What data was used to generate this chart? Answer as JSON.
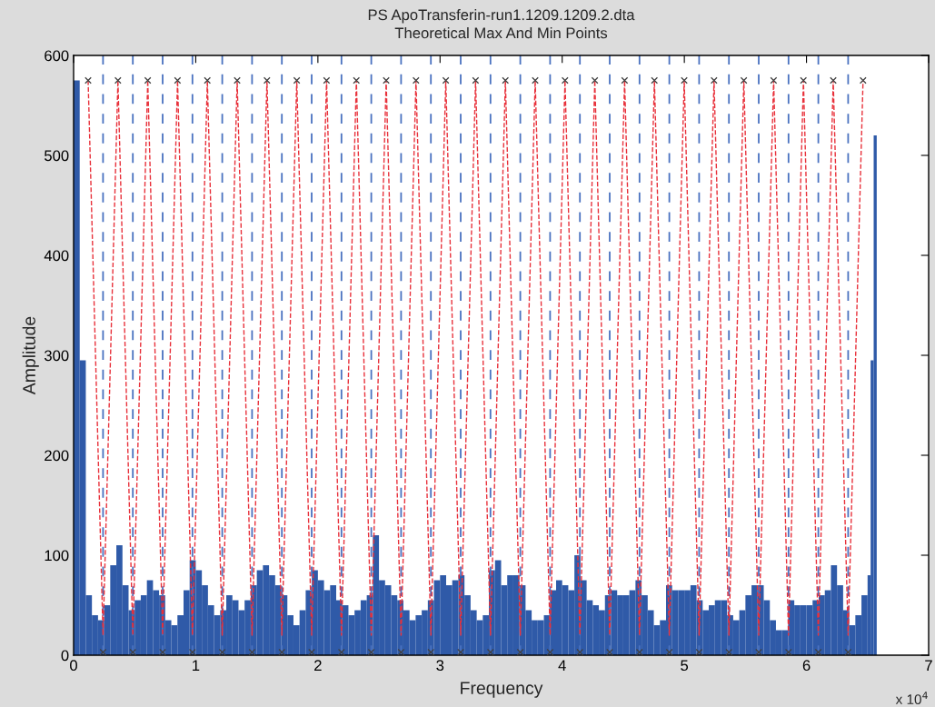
{
  "chart_data": {
    "type": "bar",
    "title": "PS ApoTransferin-run1.1209.1209.2.dta",
    "subtitle": "Theoretical Max And Min Points",
    "xlabel": "Frequency",
    "ylabel": "Amplitude",
    "annotations": [
      "x 10$^{4}$"
    ],
    "xlim": [
      0,
      7
    ],
    "xticks": [
      0,
      1,
      2,
      3,
      4,
      5,
      6,
      7
    ],
    "ylim": [
      0,
      600
    ],
    "yticks": [
      0,
      100,
      200,
      300,
      400,
      500,
      600
    ],
    "grid": false,
    "legend": false,
    "series": [
      {
        "color": "#2f5aa8",
        "x": [
          0,
          0.05,
          0.1,
          0.15,
          0.2,
          0.25,
          0.3,
          0.35,
          0.4,
          0.45,
          0.5,
          0.55,
          0.6,
          0.65,
          0.7,
          0.75,
          0.8,
          0.85,
          0.9,
          0.95,
          1.0,
          1.05,
          1.1,
          1.15,
          1.2,
          1.25,
          1.3,
          1.35,
          1.4,
          1.45,
          1.5,
          1.55,
          1.6,
          1.65,
          1.7,
          1.75,
          1.8,
          1.85,
          1.9,
          1.95,
          2.0,
          2.05,
          2.1,
          2.15,
          2.2,
          2.25,
          2.3,
          2.35,
          2.4,
          2.45,
          2.5,
          2.55,
          2.6,
          2.65,
          2.7,
          2.75,
          2.8,
          2.85,
          2.9,
          2.95,
          3.0,
          3.05,
          3.1,
          3.15,
          3.2,
          3.25,
          3.3,
          3.35,
          3.4,
          3.45,
          3.5,
          3.55,
          3.6,
          3.65,
          3.7,
          3.75,
          3.8,
          3.85,
          3.9,
          3.95,
          4.0,
          4.05,
          4.1,
          4.15,
          4.2,
          4.25,
          4.3,
          4.35,
          4.4,
          4.45,
          4.5,
          4.55,
          4.6,
          4.65,
          4.7,
          4.75,
          4.8,
          4.85,
          4.9,
          4.95,
          5.0,
          5.05,
          5.1,
          5.15,
          5.2,
          5.25,
          5.3,
          5.35,
          5.4,
          5.45,
          5.5,
          5.55,
          5.6,
          5.65,
          5.7,
          5.75,
          5.8,
          5.85,
          5.9,
          5.95,
          6.0,
          6.05,
          6.1,
          6.15,
          6.2,
          6.25,
          6.3,
          6.35,
          6.4,
          6.45,
          6.5,
          6.525,
          6.55
        ],
        "values": [
          575,
          295,
          60,
          40,
          35,
          50,
          90,
          110,
          70,
          45,
          55,
          60,
          75,
          65,
          60,
          35,
          30,
          40,
          65,
          95,
          85,
          70,
          50,
          40,
          45,
          60,
          55,
          45,
          55,
          70,
          85,
          90,
          80,
          70,
          60,
          40,
          30,
          45,
          65,
          85,
          75,
          65,
          70,
          55,
          50,
          40,
          45,
          55,
          60,
          120,
          75,
          70,
          60,
          55,
          45,
          35,
          40,
          45,
          55,
          75,
          80,
          70,
          75,
          80,
          60,
          45,
          35,
          40,
          85,
          95,
          70,
          80,
          80,
          70,
          45,
          35,
          35,
          40,
          65,
          75,
          70,
          65,
          100,
          75,
          55,
          50,
          45,
          60,
          65,
          60,
          60,
          65,
          75,
          60,
          45,
          30,
          35,
          70,
          65,
          65,
          65,
          70,
          55,
          45,
          50,
          55,
          55,
          40,
          35,
          45,
          60,
          70,
          70,
          55,
          35,
          25,
          25,
          55,
          50,
          50,
          50,
          55,
          60,
          65,
          90,
          70,
          45,
          30,
          40,
          60,
          80,
          295,
          520
        ]
      },
      {
        "type": "line",
        "color": "#e8303a",
        "line_style": "dashed",
        "marker": "none",
        "x": [
          0.119,
          0.241,
          0.363,
          0.485,
          0.607,
          0.729,
          0.851,
          0.973,
          1.095,
          1.217,
          1.339,
          1.461,
          1.583,
          1.705,
          1.827,
          1.949,
          2.071,
          2.193,
          2.315,
          2.437,
          2.559,
          2.681,
          2.803,
          2.925,
          3.047,
          3.169,
          3.291,
          3.413,
          3.535,
          3.657,
          3.779,
          3.901,
          4.023,
          4.145,
          4.267,
          4.389,
          4.511,
          4.633,
          4.755,
          4.877,
          4.999,
          5.121,
          5.243,
          5.365,
          5.487,
          5.609,
          5.731,
          5.853,
          5.975,
          6.097,
          6.219,
          6.341,
          6.463
        ],
        "values": [
          575,
          20,
          575,
          20,
          575,
          20,
          575,
          20,
          575,
          20,
          575,
          20,
          575,
          20,
          575,
          20,
          575,
          20,
          575,
          20,
          575,
          20,
          575,
          20,
          575,
          20,
          575,
          20,
          575,
          20,
          575,
          20,
          575,
          20,
          575,
          20,
          575,
          20,
          575,
          20,
          575,
          20,
          575,
          20,
          575,
          20,
          575,
          20,
          575,
          20,
          575,
          20,
          575
        ]
      },
      {
        "type": "scatter",
        "color": "#404040",
        "marker": "cross",
        "x": [
          0.119,
          0.363,
          0.607,
          0.851,
          1.095,
          1.339,
          1.583,
          1.827,
          2.071,
          2.315,
          2.559,
          2.803,
          3.047,
          3.291,
          3.535,
          3.779,
          4.023,
          4.267,
          4.511,
          4.755,
          4.999,
          5.243,
          5.487,
          5.731,
          5.975,
          6.219,
          6.463
        ],
        "values": [
          575,
          575,
          575,
          575,
          575,
          575,
          575,
          575,
          575,
          575,
          575,
          575,
          575,
          575,
          575,
          575,
          575,
          575,
          575,
          575,
          575,
          575,
          575,
          575,
          575,
          575,
          575
        ]
      },
      {
        "type": "scatter",
        "color": "#404040",
        "marker": "cross",
        "x": [
          0.241,
          0.485,
          0.729,
          0.973,
          1.217,
          1.461,
          1.705,
          1.949,
          2.193,
          2.437,
          2.681,
          2.925,
          3.169,
          3.413,
          3.657,
          3.901,
          4.145,
          4.389,
          4.633,
          4.877,
          5.121,
          5.365,
          5.609,
          5.853,
          6.097,
          6.341
        ],
        "values": [
          3,
          3,
          3,
          3,
          3,
          3,
          3,
          3,
          3,
          3,
          3,
          3,
          3,
          3,
          3,
          3,
          3,
          3,
          3,
          3,
          3,
          3,
          3,
          3,
          3,
          3
        ]
      }
    ],
    "ref_lines": [
      {
        "axis": "x",
        "value": 0.241,
        "color": "#4a72c0",
        "line_style": "dashed"
      },
      {
        "axis": "x",
        "value": 0.485,
        "color": "#4a72c0",
        "line_style": "dashed"
      },
      {
        "axis": "x",
        "value": 0.729,
        "color": "#4a72c0",
        "line_style": "dashed"
      },
      {
        "axis": "x",
        "value": 0.973,
        "color": "#4a72c0",
        "line_style": "dashed"
      },
      {
        "axis": "x",
        "value": 1.217,
        "color": "#4a72c0",
        "line_style": "dashed"
      },
      {
        "axis": "x",
        "value": 1.461,
        "color": "#4a72c0",
        "line_style": "dashed"
      },
      {
        "axis": "x",
        "value": 1.705,
        "color": "#4a72c0",
        "line_style": "dashed"
      },
      {
        "axis": "x",
        "value": 1.949,
        "color": "#4a72c0",
        "line_style": "dashed"
      },
      {
        "axis": "x",
        "value": 2.193,
        "color": "#4a72c0",
        "line_style": "dashed"
      },
      {
        "axis": "x",
        "value": 2.437,
        "color": "#4a72c0",
        "line_style": "dashed"
      },
      {
        "axis": "x",
        "value": 2.681,
        "color": "#4a72c0",
        "line_style": "dashed"
      },
      {
        "axis": "x",
        "value": 2.925,
        "color": "#4a72c0",
        "line_style": "dashed"
      },
      {
        "axis": "x",
        "value": 3.169,
        "color": "#4a72c0",
        "line_style": "dashed"
      },
      {
        "axis": "x",
        "value": 3.413,
        "color": "#4a72c0",
        "line_style": "dashed"
      },
      {
        "axis": "x",
        "value": 3.657,
        "color": "#4a72c0",
        "line_style": "dashed"
      },
      {
        "axis": "x",
        "value": 3.901,
        "color": "#4a72c0",
        "line_style": "dashed"
      },
      {
        "axis": "x",
        "value": 4.145,
        "color": "#4a72c0",
        "line_style": "dashed"
      },
      {
        "axis": "x",
        "value": 4.389,
        "color": "#4a72c0",
        "line_style": "dashed"
      },
      {
        "axis": "x",
        "value": 4.633,
        "color": "#4a72c0",
        "line_style": "dashed"
      },
      {
        "axis": "x",
        "value": 4.877,
        "color": "#4a72c0",
        "line_style": "dashed"
      },
      {
        "axis": "x",
        "value": 5.121,
        "color": "#4a72c0",
        "line_style": "dashed"
      },
      {
        "axis": "x",
        "value": 5.365,
        "color": "#4a72c0",
        "line_style": "dashed"
      },
      {
        "axis": "x",
        "value": 5.609,
        "color": "#4a72c0",
        "line_style": "dashed"
      },
      {
        "axis": "x",
        "value": 5.853,
        "color": "#4a72c0",
        "line_style": "dashed"
      },
      {
        "axis": "x",
        "value": 6.097,
        "color": "#4a72c0",
        "line_style": "dashed"
      },
      {
        "axis": "x",
        "value": 6.341,
        "color": "#4a72c0",
        "line_style": "dashed"
      }
    ]
  }
}
